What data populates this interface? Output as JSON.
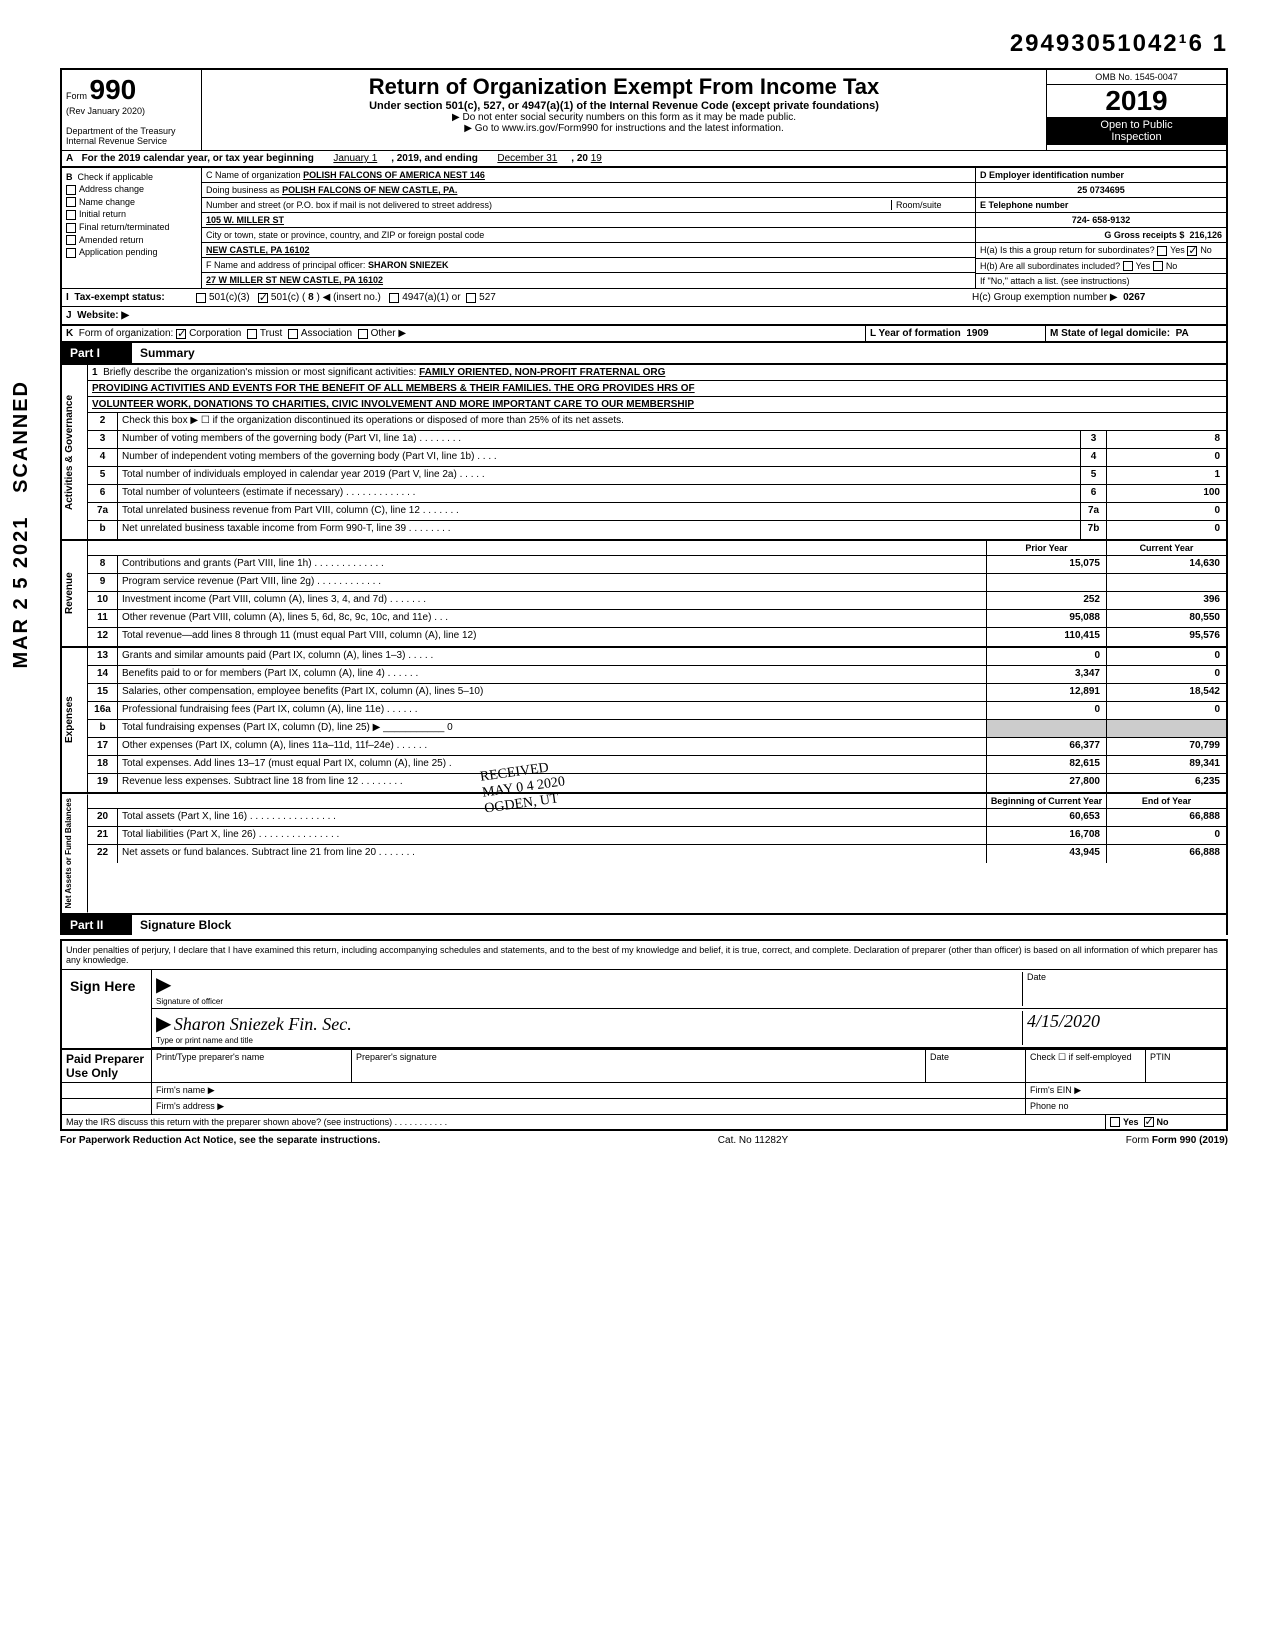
{
  "doc_number": "29493051042¹6 1",
  "form": {
    "number": "990",
    "rev": "(Rev January 2020)",
    "dept": "Department of the Treasury",
    "irs": "Internal Revenue Service",
    "title": "Return of Organization Exempt From Income Tax",
    "subtitle": "Under section 501(c), 527, or 4947(a)(1) of the Internal Revenue Code (except private foundations)",
    "note1": "▶ Do not enter social security numbers on this form as it may be made public.",
    "note2": "▶ Go to www.irs.gov/Form990 for instructions and the latest information.",
    "omb": "OMB No. 1545-0047",
    "year": "2019",
    "open": "Open to Public",
    "inspection": "Inspection"
  },
  "rowA": {
    "label": "A",
    "text1": "For the 2019 calendar year, or tax year beginning",
    "begin": "January 1",
    "text2": ", 2019, and ending",
    "end": "December 31",
    "text3": ", 20",
    "endyr": "19"
  },
  "sectionB": {
    "label": "B",
    "check_label": "Check if applicable",
    "items": [
      "Address change",
      "Name change",
      "Initial return",
      "Final return/terminated",
      "Amended return",
      "Application pending"
    ]
  },
  "sectionC": {
    "name_label": "C Name of organization",
    "name": "POLISH FALCONS OF AMERICA NEST 146",
    "dba_label": "Doing business as",
    "dba": "POLISH FALCONS OF NEW CASTLE, PA.",
    "addr_label": "Number and street (or P.O. box if mail is not delivered to street address)",
    "room_label": "Room/suite",
    "street": "105 W. MILLER ST",
    "city_label": "City or town, state or province, country, and ZIP or foreign postal code",
    "city": "NEW CASTLE, PA 16102",
    "officer_label": "F Name and address of principal officer:",
    "officer": "SHARON SNIEZEK",
    "officer_addr": "27 W MILLER ST  NEW CASTLE, PA 16102"
  },
  "sectionD": {
    "ein_label": "D Employer identification number",
    "ein": "25 0734695",
    "tel_label": "E Telephone number",
    "tel": "724- 658-9132",
    "gross_label": "G Gross receipts $",
    "gross": "216,126",
    "h_a": "H(a) Is this a group return for subordinates?",
    "h_a_yes": "Yes",
    "h_a_no": "No",
    "h_b": "H(b) Are all subordinates included?",
    "h_b_yes": "Yes",
    "h_b_no": "No",
    "h_note": "If \"No,\" attach a list. (see instructions)",
    "h_c": "H(c) Group exemption number ▶",
    "h_c_val": "0267"
  },
  "rowI": {
    "label": "I",
    "text": "Tax-exempt status:",
    "opts": [
      "501(c)(3)",
      "501(c) (",
      "8",
      ") ◀ (insert no.)",
      "4947(a)(1) or",
      "527"
    ]
  },
  "rowJ": {
    "label": "J",
    "text": "Website: ▶"
  },
  "rowK": {
    "label": "K",
    "text": "Form of organization:",
    "opts": [
      "Corporation",
      "Trust",
      "Association",
      "Other ▶"
    ],
    "year_label": "L Year of formation",
    "year": "1909",
    "state_label": "M State of legal domicile:",
    "state": "PA"
  },
  "part1": {
    "header": "Part I",
    "title": "Summary",
    "side1": "Activities & Governance",
    "side2": "Revenue",
    "side3": "Expenses",
    "side4": "Net Assets or Fund Balances",
    "line1_label": "Briefly describe the organization's mission or most significant activities:",
    "mission1": "FAMILY ORIENTED, NON-PROFIT FRATERNAL ORG",
    "mission2": "PROVIDING ACTIVITIES AND EVENTS FOR THE BENEFIT OF ALL MEMBERS & THEIR FAMILIES.  THE ORG PROVIDES HRS OF",
    "mission3": "VOLUNTEER WORK, DONATIONS TO CHARITIES, CIVIC INVOLVEMENT AND MORE IMPORTANT CARE TO OUR MEMBERSHIP",
    "line2": "Check this box ▶ ☐ if the organization discontinued its operations or disposed of more than 25% of its net assets.",
    "rows_gov": [
      {
        "n": "3",
        "t": "Number of voting members of the governing body (Part VI, line 1a) . . . . . . . .",
        "box": "3",
        "v": "8"
      },
      {
        "n": "4",
        "t": "Number of independent voting members of the governing body (Part VI, line 1b) . . . .",
        "box": "4",
        "v": "0"
      },
      {
        "n": "5",
        "t": "Total number of individuals employed in calendar year 2019 (Part V, line 2a) . . . . .",
        "box": "5",
        "v": "1"
      },
      {
        "n": "6",
        "t": "Total number of volunteers (estimate if necessary) . . . . . . . . . . . . .",
        "box": "6",
        "v": "100"
      },
      {
        "n": "7a",
        "t": "Total unrelated business revenue from Part VIII, column (C), line 12 . . . . . . .",
        "box": "7a",
        "v": "0"
      },
      {
        "n": "b",
        "t": "Net unrelated business taxable income from Form 990-T, line 39 . . . . . . . .",
        "box": "7b",
        "v": "0"
      }
    ],
    "prior_label": "Prior Year",
    "current_label": "Current Year",
    "rows_rev": [
      {
        "n": "8",
        "t": "Contributions and grants (Part VIII, line 1h) . . . . . . . . . . . . .",
        "p": "15,075",
        "c": "14,630"
      },
      {
        "n": "9",
        "t": "Program service revenue (Part VIII, line 2g) . . . . . . . . . . . .",
        "p": "",
        "c": ""
      },
      {
        "n": "10",
        "t": "Investment income (Part VIII, column (A), lines 3, 4, and 7d) . . . . . . .",
        "p": "252",
        "c": "396"
      },
      {
        "n": "11",
        "t": "Other revenue (Part VIII, column (A), lines 5, 6d, 8c, 9c, 10c, and 11e) . . .",
        "p": "95,088",
        "c": "80,550"
      },
      {
        "n": "12",
        "t": "Total revenue—add lines 8 through 11 (must equal Part VIII, column (A), line 12)",
        "p": "110,415",
        "c": "95,576"
      }
    ],
    "rows_exp": [
      {
        "n": "13",
        "t": "Grants and similar amounts paid (Part IX, column (A), lines 1–3) . . . . .",
        "p": "0",
        "c": "0"
      },
      {
        "n": "14",
        "t": "Benefits paid to or for members (Part IX, column (A), line 4) . . . . . .",
        "p": "3,347",
        "c": "0"
      },
      {
        "n": "15",
        "t": "Salaries, other compensation, employee benefits (Part IX, column (A), lines 5–10)",
        "p": "12,891",
        "c": "18,542"
      },
      {
        "n": "16a",
        "t": "Professional fundraising fees (Part IX, column (A), line 11e) . . . . . .",
        "p": "0",
        "c": "0"
      },
      {
        "n": "b",
        "t": "Total fundraising expenses (Part IX, column (D), line 25) ▶ ___________ 0",
        "p": "",
        "c": "",
        "shaded": true
      },
      {
        "n": "17",
        "t": "Other expenses (Part IX, column (A), lines 11a–11d, 11f–24e) . . . . . .",
        "p": "66,377",
        "c": "70,799"
      },
      {
        "n": "18",
        "t": "Total expenses. Add lines 13–17 (must equal Part IX, column (A), line 25) .",
        "p": "82,615",
        "c": "89,341"
      },
      {
        "n": "19",
        "t": "Revenue less expenses. Subtract line 18 from line 12 . . . . . . . .",
        "p": "27,800",
        "c": "6,235"
      }
    ],
    "begin_label": "Beginning of Current Year",
    "end_label": "End of Year",
    "rows_net": [
      {
        "n": "20",
        "t": "Total assets (Part X, line 16) . . . . . . . . . . . . . . . .",
        "p": "60,653",
        "c": "66,888"
      },
      {
        "n": "21",
        "t": "Total liabilities (Part X, line 26) . . . . . . . . . . . . . . .",
        "p": "16,708",
        "c": "0"
      },
      {
        "n": "22",
        "t": "Net assets or fund balances. Subtract line 21 from line 20 . . . . . . .",
        "p": "43,945",
        "c": "66,888"
      }
    ]
  },
  "part2": {
    "header": "Part II",
    "title": "Signature Block",
    "penalty": "Under penalties of perjury, I declare that I have examined this return, including accompanying schedules and statements, and to the best of my knowledge and belief, it is true, correct, and complete. Declaration of preparer (other than officer) is based on all information of which preparer has any knowledge.",
    "sign_here": "Sign Here",
    "sig_label": "Signature of officer",
    "name_printed": "Sharon Sniezek Fin. Sec.",
    "type_label": "Type or print name and title",
    "date_label": "Date",
    "date_val": "4/15/2020",
    "paid": "Paid Preparer Use Only",
    "prep_name": "Print/Type preparer's name",
    "prep_sig": "Preparer's signature",
    "prep_date": "Date",
    "check_self": "Check ☐ if self-employed",
    "ptin": "PTIN",
    "firm_name": "Firm's name ▶",
    "firm_ein": "Firm's EIN ▶",
    "firm_addr": "Firm's address ▶",
    "phone": "Phone no",
    "discuss": "May the IRS discuss this return with the preparer shown above? (see instructions) . . . . . . . . . . .",
    "yes": "Yes",
    "no": "No"
  },
  "footer": {
    "left": "For Paperwork Reduction Act Notice, see the separate instructions.",
    "mid": "Cat. No 11282Y",
    "right": "Form 990 (2019)"
  },
  "stamps": {
    "scanned": "SCANNED",
    "date_side": "MAR 2 5 2021",
    "received": "RECEIVED",
    "may": "MAY 0 4 2020",
    "ogden": "OGDEN, UT"
  }
}
